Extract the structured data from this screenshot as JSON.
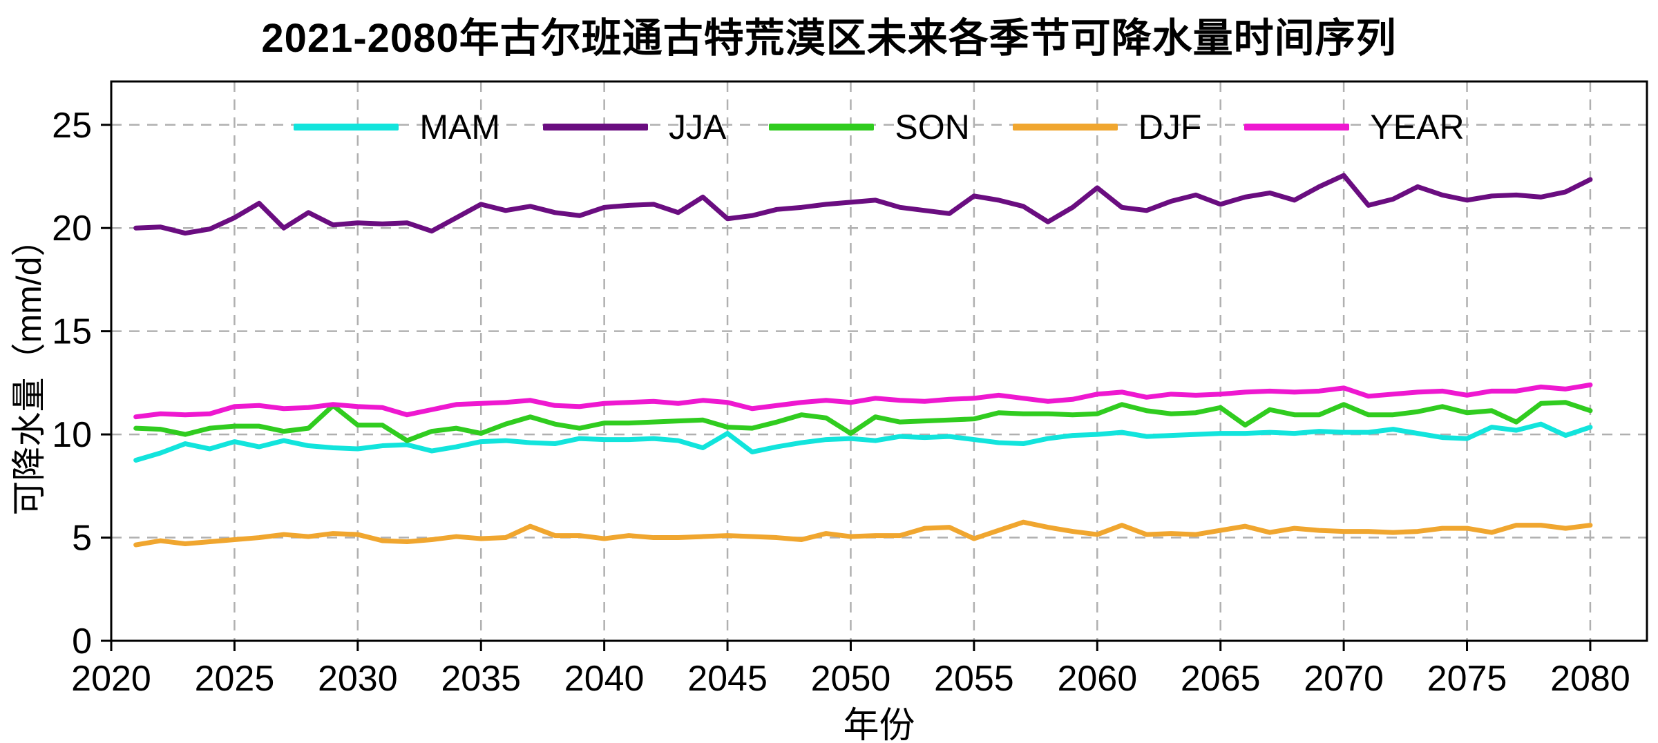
{
  "figure": {
    "title": "2021-2080年古尔班通古特荒漠区未来各季节可降水量时间序列",
    "xlabel": "年份",
    "ylabel": "可降水量（mm/d）"
  },
  "chart_data": {
    "type": "line",
    "title": "2021-2080年古尔班通古特荒漠区未来各季节可降水量时间序列",
    "xlabel": "年份",
    "ylabel": "可降水量（mm/d）",
    "grid": true,
    "grid_style": "dashed",
    "legend_position": "upper center",
    "legend_order": [
      "MAM",
      "JJA",
      "SON",
      "DJF",
      "YEAR"
    ],
    "xlim": [
      2020,
      2082.3
    ],
    "ylim": [
      0,
      27.1
    ],
    "xticks": [
      2020,
      2025,
      2030,
      2035,
      2040,
      2045,
      2050,
      2055,
      2060,
      2065,
      2070,
      2075,
      2080
    ],
    "yticks": [
      0,
      5,
      10,
      15,
      20,
      25
    ],
    "x": [
      2021,
      2022,
      2023,
      2024,
      2025,
      2026,
      2027,
      2028,
      2029,
      2030,
      2031,
      2032,
      2033,
      2034,
      2035,
      2036,
      2037,
      2038,
      2039,
      2040,
      2041,
      2042,
      2043,
      2044,
      2045,
      2046,
      2047,
      2048,
      2049,
      2050,
      2051,
      2052,
      2053,
      2054,
      2055,
      2056,
      2057,
      2058,
      2059,
      2060,
      2061,
      2062,
      2063,
      2064,
      2065,
      2066,
      2067,
      2068,
      2069,
      2070,
      2071,
      2072,
      2073,
      2074,
      2075,
      2076,
      2077,
      2078,
      2079,
      2080
    ],
    "series": [
      {
        "name": "MAM",
        "color": "#12e4dc",
        "values": [
          8.75,
          9.1,
          9.55,
          9.3,
          9.65,
          9.4,
          9.7,
          9.45,
          9.35,
          9.3,
          9.45,
          9.5,
          9.2,
          9.4,
          9.65,
          9.7,
          9.6,
          9.55,
          9.8,
          9.75,
          9.75,
          9.8,
          9.7,
          9.35,
          10.05,
          9.15,
          9.4,
          9.6,
          9.75,
          9.8,
          9.7,
          9.9,
          9.85,
          9.9,
          9.75,
          9.6,
          9.55,
          9.8,
          9.95,
          10.0,
          10.1,
          9.9,
          9.95,
          10.0,
          10.05,
          10.05,
          10.1,
          10.05,
          10.15,
          10.1,
          10.1,
          10.25,
          10.05,
          9.85,
          9.8,
          10.35,
          10.2,
          10.5,
          9.95,
          10.35
        ]
      },
      {
        "name": "JJA",
        "color": "#6a0d80",
        "values": [
          20.0,
          20.05,
          19.75,
          19.95,
          20.5,
          21.2,
          20.0,
          20.75,
          20.15,
          20.25,
          20.2,
          20.25,
          19.85,
          20.5,
          21.15,
          20.85,
          21.05,
          20.75,
          20.6,
          21.0,
          21.1,
          21.15,
          20.75,
          21.5,
          20.45,
          20.6,
          20.9,
          21.0,
          21.15,
          21.25,
          21.35,
          21.0,
          20.85,
          20.7,
          21.55,
          21.35,
          21.05,
          20.3,
          21.0,
          21.95,
          21.0,
          20.85,
          21.3,
          21.6,
          21.15,
          21.5,
          21.7,
          21.35,
          22.0,
          22.55,
          21.1,
          21.4,
          22.0,
          21.6,
          21.35,
          21.55,
          21.6,
          21.5,
          21.75,
          22.35
        ]
      },
      {
        "name": "SON",
        "color": "#30cc1f",
        "values": [
          10.3,
          10.25,
          10.0,
          10.3,
          10.4,
          10.4,
          10.15,
          10.3,
          11.4,
          10.45,
          10.45,
          9.7,
          10.15,
          10.3,
          10.05,
          10.5,
          10.85,
          10.5,
          10.3,
          10.55,
          10.55,
          10.6,
          10.65,
          10.7,
          10.35,
          10.3,
          10.6,
          10.95,
          10.8,
          10.05,
          10.85,
          10.6,
          10.65,
          10.7,
          10.75,
          11.05,
          11.0,
          11.0,
          10.95,
          11.0,
          11.45,
          11.15,
          11.0,
          11.05,
          11.3,
          10.45,
          11.2,
          10.95,
          10.95,
          11.45,
          10.95,
          10.95,
          11.1,
          11.35,
          11.05,
          11.15,
          10.6,
          11.5,
          11.55,
          11.15
        ]
      },
      {
        "name": "DJF",
        "color": "#f0a62f",
        "values": [
          4.65,
          4.85,
          4.7,
          4.8,
          4.9,
          5.0,
          5.15,
          5.05,
          5.2,
          5.15,
          4.85,
          4.8,
          4.9,
          5.05,
          4.95,
          5.0,
          5.55,
          5.1,
          5.1,
          4.95,
          5.1,
          5.0,
          5.0,
          5.05,
          5.1,
          5.05,
          5.0,
          4.9,
          5.2,
          5.05,
          5.1,
          5.1,
          5.45,
          5.5,
          4.95,
          5.35,
          5.75,
          5.5,
          5.3,
          5.15,
          5.6,
          5.15,
          5.2,
          5.15,
          5.35,
          5.55,
          5.25,
          5.45,
          5.35,
          5.3,
          5.3,
          5.25,
          5.3,
          5.45,
          5.45,
          5.25,
          5.6,
          5.6,
          5.45,
          5.6
        ]
      },
      {
        "name": "YEAR",
        "color": "#ee18d0",
        "values": [
          10.85,
          11.0,
          10.95,
          11.0,
          11.35,
          11.4,
          11.25,
          11.3,
          11.45,
          11.35,
          11.3,
          10.95,
          11.2,
          11.45,
          11.5,
          11.55,
          11.65,
          11.4,
          11.35,
          11.5,
          11.55,
          11.6,
          11.5,
          11.65,
          11.55,
          11.25,
          11.4,
          11.55,
          11.65,
          11.55,
          11.75,
          11.65,
          11.6,
          11.7,
          11.75,
          11.9,
          11.75,
          11.6,
          11.7,
          11.95,
          12.05,
          11.8,
          11.95,
          11.9,
          11.95,
          12.05,
          12.1,
          12.05,
          12.1,
          12.25,
          11.85,
          11.95,
          12.05,
          12.1,
          11.9,
          12.1,
          12.1,
          12.3,
          12.2,
          12.4
        ]
      }
    ],
    "style": {
      "grid_color": "#b0b0b0",
      "axis_color": "#000000",
      "background": "#ffffff",
      "line_width": 7
    }
  }
}
